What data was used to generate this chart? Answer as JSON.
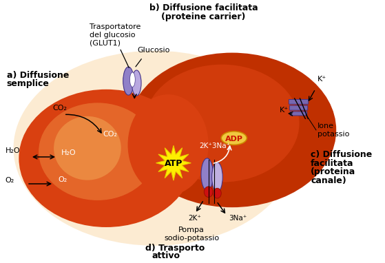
{
  "bg_color": "#ffffff",
  "cell_dark": "#c03000",
  "cell_mid": "#d94010",
  "cell_light": "#e87030",
  "cell_glow": "#f0a050",
  "cell_edge_glow": "#f8c880",
  "title_b1": "b) Diffusione facilitata",
  "title_b2": "(proteine carrier)",
  "title_a1": "a) Diffusione",
  "title_a2": "semplice",
  "title_c1": "c) Diffusione",
  "title_c2": "facilitata",
  "title_c3": "(proteina",
  "title_c4": "canale)",
  "title_d1": "d) Trasporto",
  "title_d2": "attivo",
  "label_trasp1": "Trasportatore",
  "label_trasp2": "del glucosio",
  "label_trasp3": "(GLUT1)",
  "label_glucosio": "Glucosio",
  "label_co2_out": "CO₂",
  "label_co2_in": "CO₂",
  "label_h2o_out": "H₂O",
  "label_h2o_in": "H₂O",
  "label_o2_out": "O₂",
  "label_o2_in": "O₂",
  "label_atp": "ATP",
  "label_adp": "ADP",
  "label_2k3na": "2K⁺3Na⁺",
  "label_2k": "2K⁺",
  "label_3na": "3Na⁺",
  "label_k_upper": "K⁺",
  "label_k_lower": "K⁺",
  "label_ione": "Ione",
  "label_potassio": "potassio",
  "label_pompa1": "Pompa",
  "label_pompa2": "sodio-potassio",
  "carrier_purple": "#9080c8",
  "carrier_light": "#b8a8e0",
  "carrier_white": "#ffffff",
  "atp_yellow": "#ffee00",
  "atp_edge": "#e8cc00",
  "adp_fill": "#f0c840",
  "adp_edge": "#cc8800",
  "adp_text": "#cc1100",
  "pump_purple": "#9080c8",
  "pump_light": "#c0b0e0",
  "pump_red": "#cc1010",
  "kchan_purple": "#7868b0"
}
